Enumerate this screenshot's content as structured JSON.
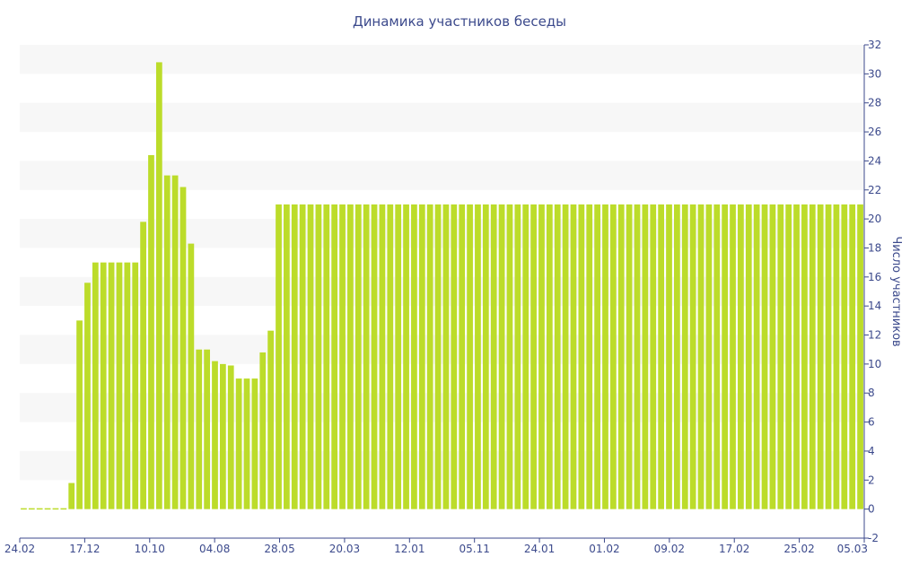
{
  "chart_data": {
    "type": "bar",
    "title": "Динамика участников беседы",
    "ylabel": "Число участников",
    "xlabel": "",
    "y_axis_side": "right",
    "ylim": [
      -2,
      32
    ],
    "yticks": [
      -2,
      0,
      2,
      4,
      6,
      8,
      10,
      12,
      14,
      16,
      18,
      20,
      22,
      24,
      26,
      28,
      30,
      32
    ],
    "grid": "alternating horizontal bands",
    "bar_color": "#bcdc2a",
    "band_color": "#f7f7f7",
    "text_color": "#3c4a8c",
    "axis_color": "#3c4a8c",
    "x_tick_labels": [
      "24.02",
      "17.12",
      "10.10",
      "04.08",
      "28.05",
      "20.03",
      "12.01",
      "05.11",
      "24.01",
      "01.02",
      "09.02",
      "17.02",
      "25.02",
      "05.03"
    ],
    "values": [
      0,
      0,
      0,
      0,
      0,
      0,
      1.8,
      13,
      15.6,
      17,
      17,
      17,
      17,
      17,
      17,
      19.8,
      24.4,
      30.8,
      23,
      23,
      22.2,
      18.3,
      11,
      11,
      10.2,
      10,
      9.9,
      9,
      9,
      9,
      10.8,
      12.3,
      21,
      21,
      21,
      21,
      21,
      21,
      21,
      21,
      21,
      21,
      21,
      21,
      21,
      21,
      21,
      21,
      21,
      21,
      21,
      21,
      21,
      21,
      21,
      21,
      21,
      21,
      21,
      21,
      21,
      21,
      21,
      21,
      21,
      21,
      21,
      21,
      21,
      21,
      21,
      21,
      21,
      21,
      21,
      21,
      21,
      21,
      21,
      21,
      21,
      21,
      21,
      21,
      21,
      21,
      21,
      21,
      21,
      21,
      21,
      21,
      21,
      21,
      21,
      21,
      21,
      21,
      21,
      21,
      21,
      21,
      21,
      21,
      21,
      21
    ]
  }
}
